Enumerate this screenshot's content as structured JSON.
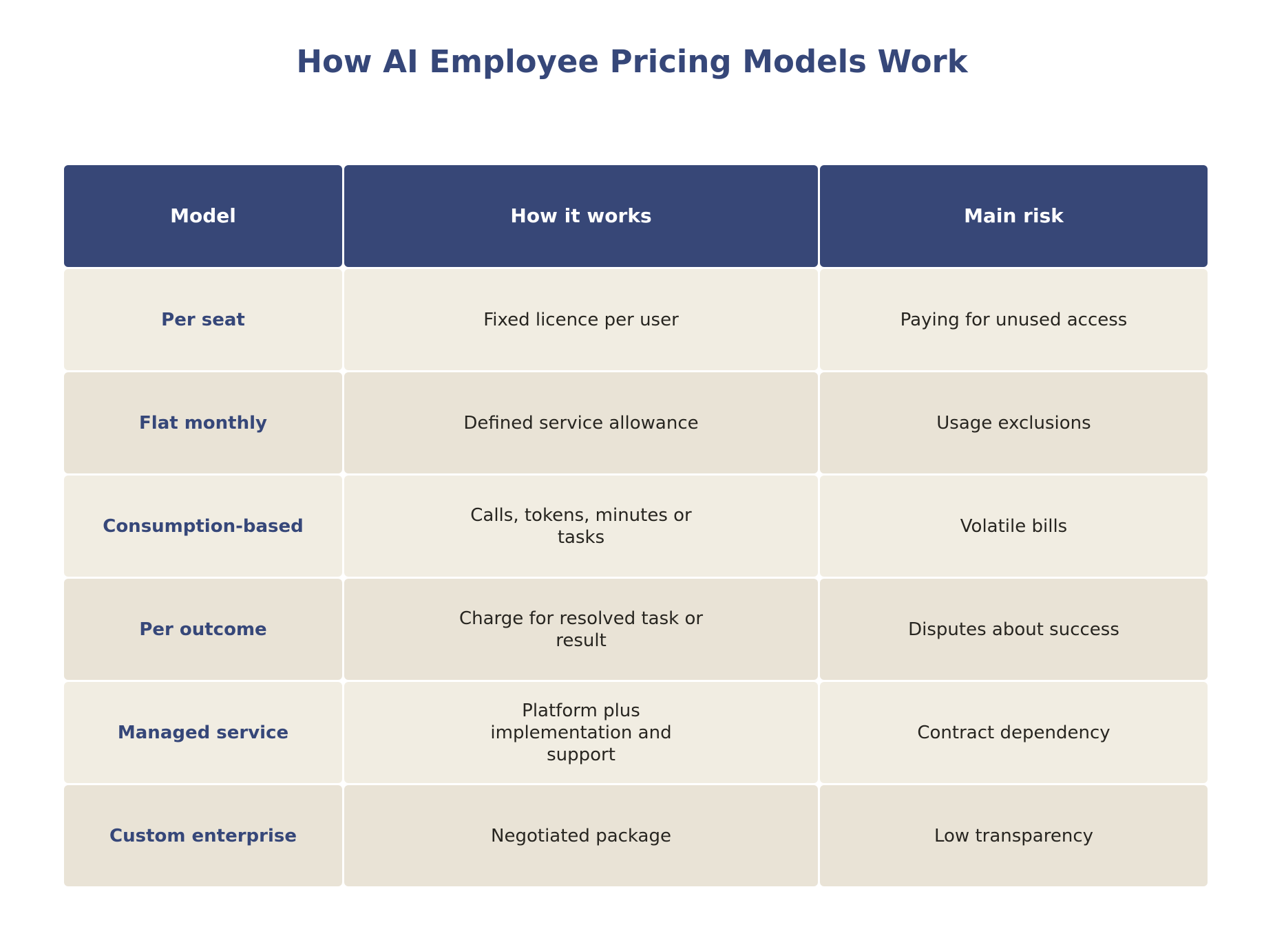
{
  "title": "How AI Employee Pricing Models Work",
  "header": {
    "model": "Model",
    "how": "How it works",
    "risk": "Main risk"
  },
  "rows": [
    {
      "model": "Per seat",
      "how": "Fixed licence per user",
      "risk": "Paying for unused access"
    },
    {
      "model": "Flat monthly",
      "how": "Defined service allowance",
      "risk": "Usage exclusions"
    },
    {
      "model": "Consumption-based",
      "how": "Calls, tokens, minutes or tasks",
      "risk": "Volatile bills"
    },
    {
      "model": "Per outcome",
      "how": "Charge for resolved task or result",
      "risk": "Disputes about success"
    },
    {
      "model": "Managed service",
      "how": "Platform plus implementation and support",
      "risk": "Contract dependency"
    },
    {
      "model": "Custom enterprise",
      "how": "Negotiated package",
      "risk": "Low transparency"
    }
  ],
  "colors": {
    "header_bg": "#374777",
    "accent_text": "#364779",
    "row_light": "#f1ede2",
    "row_dark": "#e9e3d6"
  }
}
